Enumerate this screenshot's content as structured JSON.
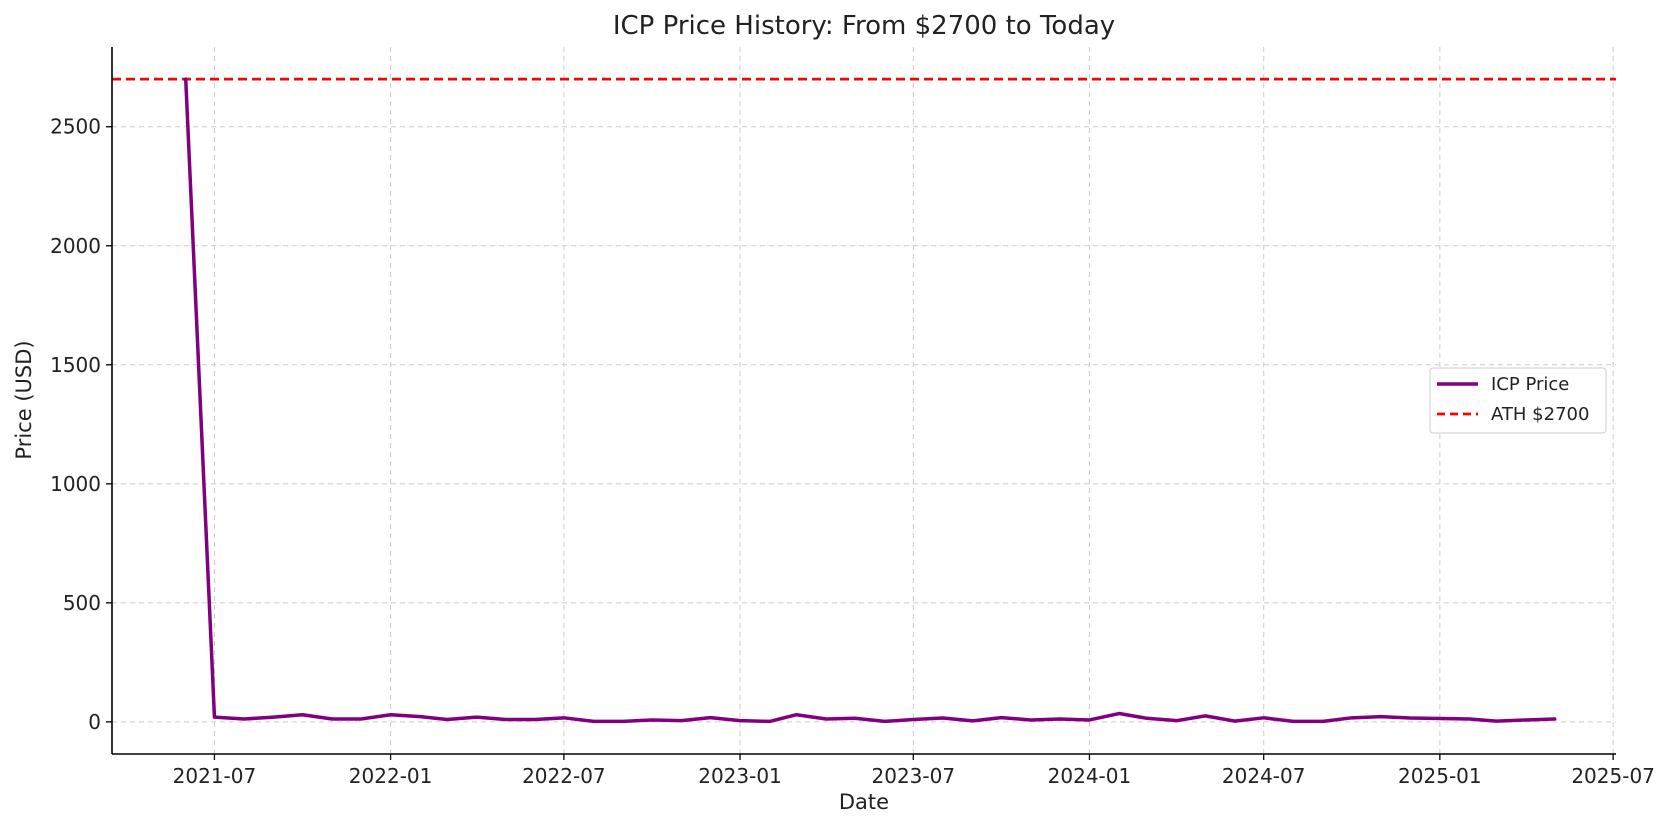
{
  "chart_data": {
    "type": "line",
    "title": "ICP Price History: From $2700 to Today",
    "xlabel": "Date",
    "ylabel": "Price (USD)",
    "xlim": [
      "2021-03-16",
      "2025-07-04"
    ],
    "ylim": [
      -135,
      2835
    ],
    "grid": true,
    "grid_style": "dashed",
    "legend_position": "center-right",
    "x_ticks": [
      "2021-07",
      "2022-01",
      "2022-07",
      "2023-01",
      "2023-07",
      "2024-01",
      "2024-07",
      "2025-01",
      "2025-07"
    ],
    "y_ticks": [
      0,
      500,
      1000,
      1500,
      2000,
      2500
    ],
    "series": [
      {
        "name": "ICP Price",
        "color": "#800080",
        "style": "solid",
        "x": [
          "2021-06-01",
          "2021-07-01",
          "2021-08-01",
          "2021-09-01",
          "2021-10-01",
          "2021-11-01",
          "2021-12-01",
          "2022-01-01",
          "2022-02-01",
          "2022-03-01",
          "2022-04-01",
          "2022-05-01",
          "2022-06-01",
          "2022-07-01",
          "2022-08-01",
          "2022-09-01",
          "2022-10-01",
          "2022-11-01",
          "2022-12-01",
          "2023-01-01",
          "2023-02-01",
          "2023-03-01",
          "2023-04-01",
          "2023-05-01",
          "2023-06-01",
          "2023-07-01",
          "2023-08-01",
          "2023-09-01",
          "2023-10-01",
          "2023-11-01",
          "2023-12-01",
          "2024-01-01",
          "2024-02-01",
          "2024-03-01",
          "2024-04-01",
          "2024-05-01",
          "2024-06-01",
          "2024-07-01",
          "2024-08-01",
          "2024-09-01",
          "2024-10-01",
          "2024-11-01",
          "2024-12-01",
          "2025-01-01",
          "2025-02-01",
          "2025-03-01",
          "2025-04-01",
          "2025-05-01"
        ],
        "values": [
          2700,
          20,
          12,
          20,
          30,
          12,
          12,
          30,
          22,
          10,
          20,
          10,
          10,
          17,
          2,
          2,
          8,
          5,
          18,
          5,
          2,
          30,
          12,
          15,
          2,
          10,
          16,
          4,
          18,
          8,
          12,
          8,
          35,
          15,
          5,
          25,
          3,
          17,
          2,
          2,
          17,
          22,
          16,
          14,
          12,
          3,
          8,
          12
        ]
      },
      {
        "name": "ATH $2700",
        "color": "#ff0000",
        "style": "dashed",
        "type": "hline",
        "y": 2700
      }
    ]
  }
}
